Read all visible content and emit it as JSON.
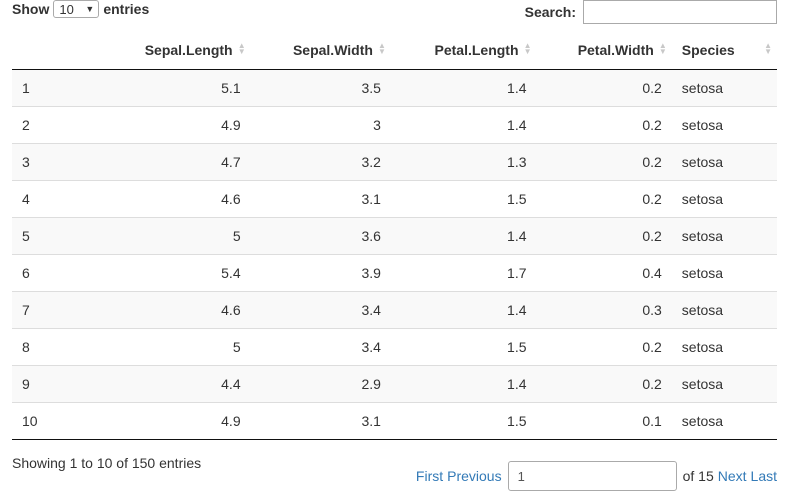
{
  "length_control": {
    "show_label": "Show",
    "selected": "10",
    "entries_label": "entries"
  },
  "search": {
    "label": "Search:",
    "value": ""
  },
  "table": {
    "columns": [
      "",
      "Sepal.Length",
      "Sepal.Width",
      "Petal.Length",
      "Petal.Width",
      "Species"
    ],
    "rows": [
      [
        "1",
        "5.1",
        "3.5",
        "1.4",
        "0.2",
        "setosa"
      ],
      [
        "2",
        "4.9",
        "3",
        "1.4",
        "0.2",
        "setosa"
      ],
      [
        "3",
        "4.7",
        "3.2",
        "1.3",
        "0.2",
        "setosa"
      ],
      [
        "4",
        "4.6",
        "3.1",
        "1.5",
        "0.2",
        "setosa"
      ],
      [
        "5",
        "5",
        "3.6",
        "1.4",
        "0.2",
        "setosa"
      ],
      [
        "6",
        "5.4",
        "3.9",
        "1.7",
        "0.4",
        "setosa"
      ],
      [
        "7",
        "4.6",
        "3.4",
        "1.4",
        "0.3",
        "setosa"
      ],
      [
        "8",
        "5",
        "3.4",
        "1.5",
        "0.2",
        "setosa"
      ],
      [
        "9",
        "4.4",
        "2.9",
        "1.4",
        "0.2",
        "setosa"
      ],
      [
        "10",
        "4.9",
        "3.1",
        "1.5",
        "0.1",
        "setosa"
      ]
    ]
  },
  "info": {
    "text": "Showing 1 to 10 of 150 entries"
  },
  "pagination": {
    "first": "First",
    "previous": "Previous",
    "current_page": "1",
    "of_text": "of 15",
    "next": "Next",
    "last": "Last"
  },
  "icons": {
    "sort": "sort-both-icon",
    "select_caret": "caret-down-icon"
  },
  "colors": {
    "link": "#337ab7",
    "stripe": "#f9f9f9",
    "sort_icon": "#c8c8c8"
  }
}
